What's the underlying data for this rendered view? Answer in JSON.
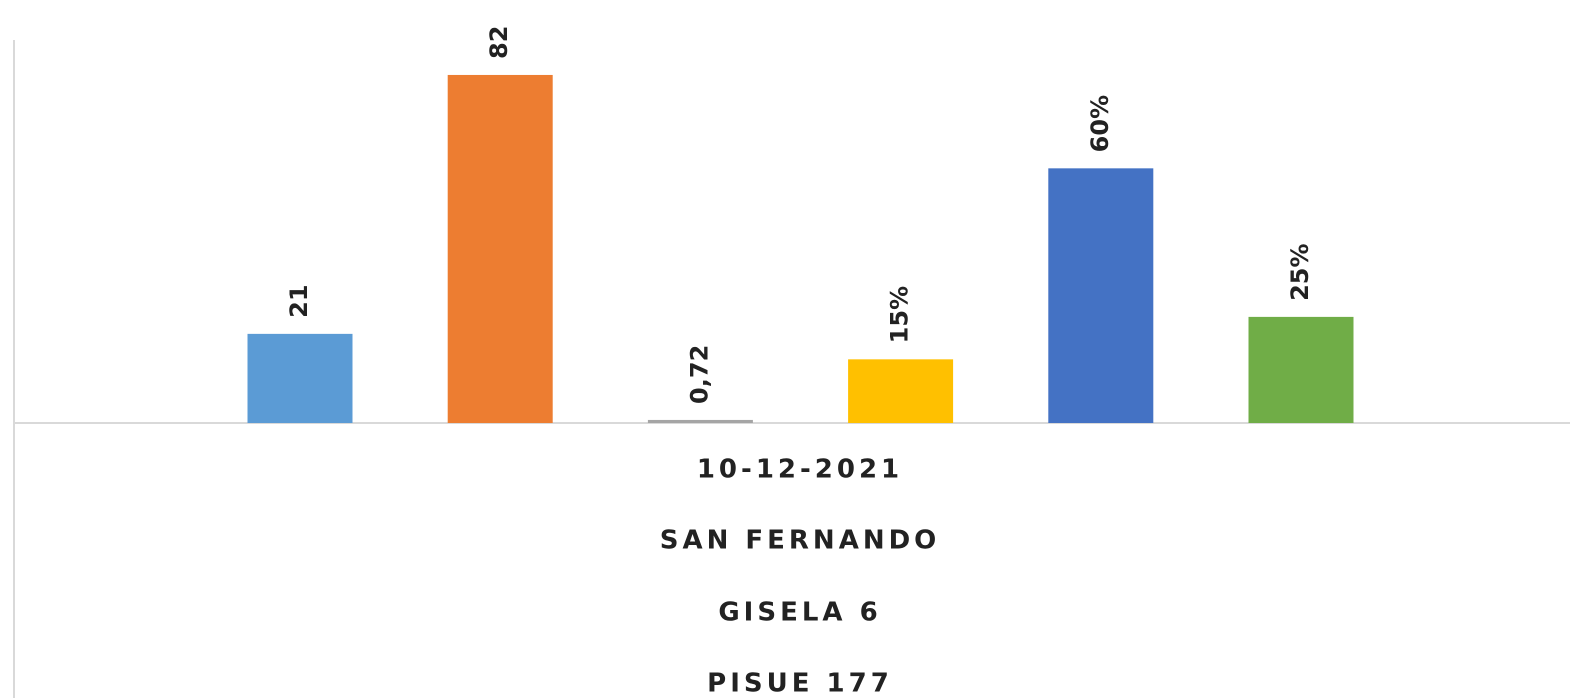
{
  "chart_data": {
    "type": "bar",
    "values": [
      21,
      82,
      0.72,
      15,
      60,
      25
    ],
    "value_labels": [
      "21",
      "82",
      "0,72",
      "15%",
      "60%",
      "25%"
    ],
    "colors": [
      "#5b9bd5",
      "#ed7d31",
      "#a5a5a5",
      "#ffc000",
      "#4472c4",
      "#70ad47"
    ],
    "group_labels": [
      "10-12-2021",
      "SAN FERNANDO",
      "GISELA 6",
      "PISUE 177"
    ],
    "ylim": [
      0,
      90
    ]
  }
}
